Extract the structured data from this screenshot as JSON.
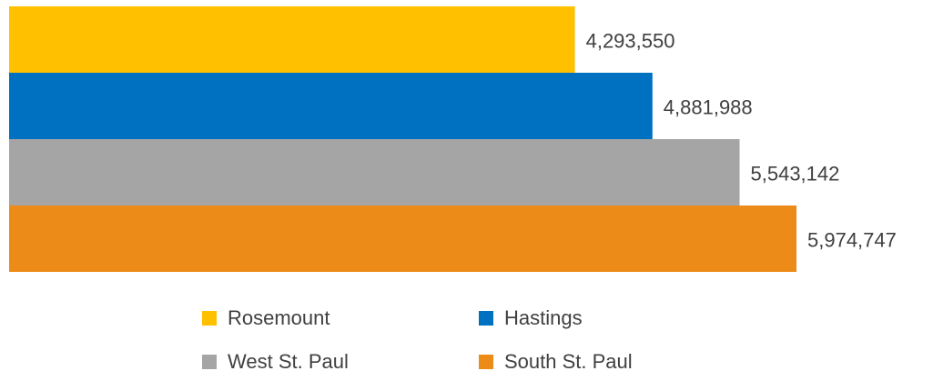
{
  "chart_data": {
    "type": "bar",
    "orientation": "horizontal",
    "series": [
      {
        "name": "Rosemount",
        "color": "#FFC000",
        "values": [
          4293550
        ],
        "value_labels": [
          "4,293,550"
        ]
      },
      {
        "name": "Hastings",
        "color": "#0070C0",
        "values": [
          4881988
        ],
        "value_labels": [
          "4,881,988"
        ]
      },
      {
        "name": "West St. Paul",
        "color": "#A5A5A5",
        "values": [
          5543142
        ],
        "value_labels": [
          "5,543,142"
        ]
      },
      {
        "name": "South St. Paul",
        "color": "#ED8B18",
        "values": [
          5974747
        ],
        "value_labels": [
          "5,974,747"
        ]
      }
    ],
    "legend": "bottom"
  }
}
